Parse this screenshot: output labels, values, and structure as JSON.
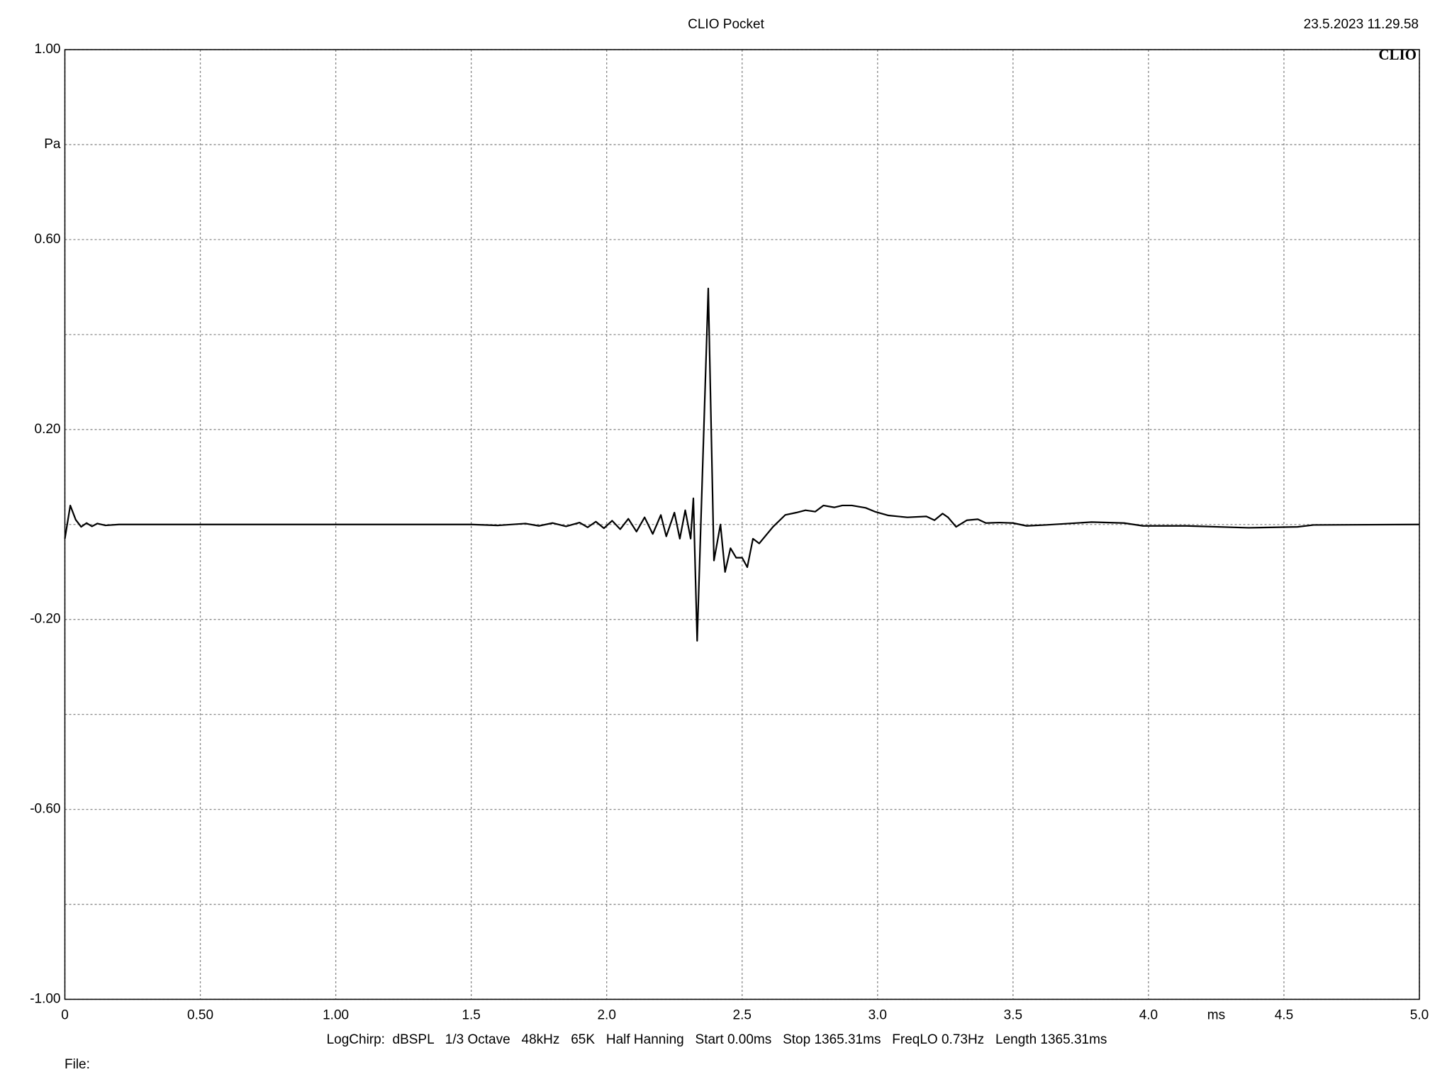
{
  "chart_data": {
    "type": "line",
    "title": "CLIO Pocket",
    "timestamp": "23.5.2023 11.29.58",
    "logo": "CLIO",
    "y_unit": "Pa",
    "x_unit": "ms",
    "footer": "LogChirp:  dBSPL   1/3 Octave   48kHz   65K   Half Hanning   Start 0.00ms   Stop 1365.31ms   FreqLO 0.73Hz   Length 1365.31ms",
    "file_label": "File:",
    "color": "#000000",
    "grid": true,
    "xlim": [
      0,
      5
    ],
    "ylim": [
      -1,
      1
    ],
    "xticks": [
      0,
      {
        "value": 0.5,
        "label": "0.50"
      },
      {
        "value": 1,
        "label": "1.00"
      },
      1.5,
      {
        "value": 2,
        "label": "2.0"
      },
      2.5,
      {
        "value": 3,
        "label": "3.0"
      },
      3.5,
      {
        "value": 4,
        "label": "4.0"
      },
      4.5,
      {
        "value": 5,
        "label": "5.0"
      }
    ],
    "yticks": [
      {
        "value": 1,
        "label": "1.00"
      },
      {
        "value": 0.6,
        "label": "0.60"
      },
      {
        "value": 0.2,
        "label": "0.20"
      },
      {
        "value": -0.2,
        "label": "-0.20"
      },
      {
        "value": -0.6,
        "label": "-0.60"
      },
      {
        "value": -1,
        "label": "-1.00"
      }
    ],
    "yticks_minor": [
      0.8,
      0.4,
      0,
      -0.4,
      -0.8
    ],
    "x": [
      0,
      0.02,
      0.04,
      0.06,
      0.08,
      0.1,
      0.12,
      0.15,
      0.2,
      0.3,
      0.5,
      1.0,
      1.5,
      1.6,
      1.7,
      1.75,
      1.8,
      1.85,
      1.9,
      1.93,
      1.96,
      1.99,
      2.02,
      2.05,
      2.08,
      2.11,
      2.14,
      2.17,
      2.2,
      2.22,
      2.25,
      2.27,
      2.29,
      2.31,
      2.32,
      2.334,
      2.375,
      2.396,
      2.42,
      2.437,
      2.457,
      2.478,
      2.5,
      2.519,
      2.54,
      2.563,
      2.614,
      2.659,
      2.7,
      2.734,
      2.77,
      2.8,
      2.84,
      2.87,
      2.905,
      2.956,
      2.99,
      3.04,
      3.11,
      3.18,
      3.21,
      3.24,
      3.26,
      3.29,
      3.33,
      3.37,
      3.4,
      3.45,
      3.5,
      3.55,
      3.62,
      3.79,
      3.91,
      3.98,
      4.14,
      4.37,
      4.55,
      4.61,
      5.0
    ],
    "values": [
      -0.03,
      0.04,
      0.01,
      -0.005,
      0.003,
      -0.004,
      0.002,
      -0.002,
      0,
      0,
      0,
      0,
      0,
      -0.002,
      0.002,
      -0.003,
      0.003,
      -0.004,
      0.004,
      -0.006,
      0.006,
      -0.008,
      0.008,
      -0.01,
      0.012,
      -0.015,
      0.015,
      -0.02,
      0.02,
      -0.025,
      0.025,
      -0.03,
      0.03,
      -0.03,
      0.055,
      -0.245,
      0.497,
      -0.076,
      0,
      -0.1,
      -0.05,
      -0.07,
      -0.07,
      -0.09,
      -0.03,
      -0.04,
      -0.005,
      0.02,
      0.025,
      0.03,
      0.027,
      0.04,
      0.036,
      0.04,
      0.04,
      0.035,
      0.027,
      0.019,
      0.015,
      0.017,
      0.009,
      0.023,
      0.015,
      -0.005,
      0.009,
      0.011,
      0.003,
      0.004,
      0.003,
      -0.003,
      -0.001,
      0.005,
      0.003,
      -0.003,
      -0.003,
      -0.007,
      -0.005,
      -0.001,
      0
    ]
  }
}
